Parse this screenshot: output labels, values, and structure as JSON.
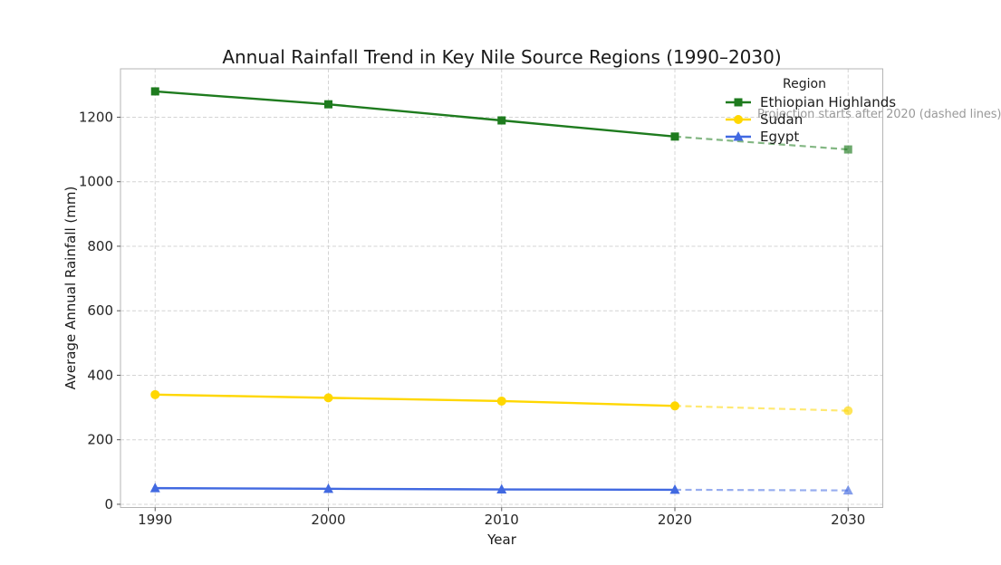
{
  "page": {
    "background": "#ffffff"
  },
  "chart_data": {
    "type": "line",
    "title": "Annual Rainfall Trend in Key Nile Source Regions (1990–2030)",
    "xlabel": "Year",
    "ylabel": "Average Annual Rainfall (mm)",
    "x": [
      1990,
      2000,
      2010,
      2020,
      2030
    ],
    "xticks": [
      "1990",
      "2000",
      "2010",
      "2020",
      "2030"
    ],
    "yticks": [
      "0",
      "200",
      "400",
      "600",
      "800",
      "1000",
      "1200"
    ],
    "ytick_values": [
      0,
      200,
      400,
      600,
      800,
      1000,
      1200
    ],
    "xlim": [
      1988,
      2032
    ],
    "ylim": [
      -10,
      1350
    ],
    "grid": true,
    "legend": {
      "title": "Region",
      "position": "upper right"
    },
    "projection_start_x": 2020,
    "series": [
      {
        "name": "Ethiopian Highlands",
        "marker": "square",
        "color": "#1e7b1e",
        "values": [
          1280,
          1240,
          1190,
          1140,
          1100
        ]
      },
      {
        "name": "Sudan",
        "marker": "circle",
        "color": "#ffd700",
        "values": [
          340,
          330,
          320,
          305,
          290
        ]
      },
      {
        "name": "Egypt",
        "marker": "triangle",
        "color": "#4169e1",
        "values": [
          50,
          48,
          46,
          45,
          43
        ]
      }
    ],
    "annotation": {
      "text": "Projection starts after 2020 (dashed lines)",
      "color": "#9a9a9a"
    },
    "style": {
      "grid_color": "#d4d4d4",
      "spine_color": "#b5b5b5",
      "tick_color": "#555555",
      "text_color": "#262626",
      "dashed_opacity": 0.55,
      "projection_marker_opacity": 0.65
    }
  }
}
